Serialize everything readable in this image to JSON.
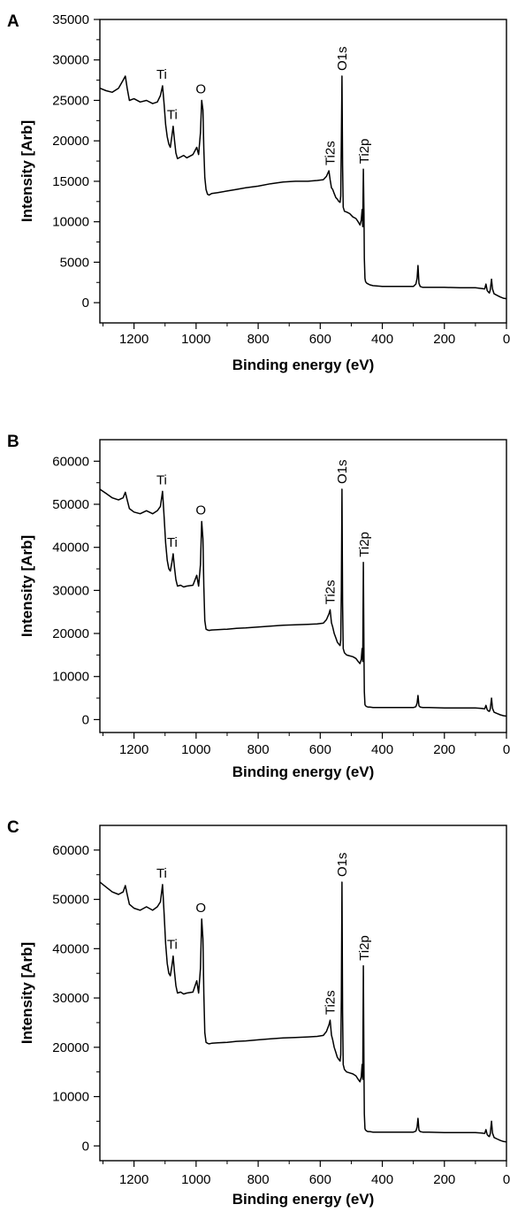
{
  "chart_data": [
    {
      "panel": "A",
      "type": "line",
      "title": "",
      "xlabel": "Binding energy (eV)",
      "ylabel": "Intensity [Arb]",
      "xlim": [
        1310,
        0
      ],
      "ylim": [
        -2500,
        35000
      ],
      "xticks": [
        1200,
        1000,
        800,
        600,
        400,
        200,
        0
      ],
      "yticks": [
        0,
        5000,
        10000,
        15000,
        20000,
        25000,
        30000,
        35000
      ],
      "series": [
        {
          "x": [
            1310,
            1290,
            1270,
            1250,
            1235,
            1228,
            1222,
            1215,
            1200,
            1180,
            1160,
            1140,
            1125,
            1115,
            1108,
            1103,
            1098,
            1093,
            1088,
            1083,
            1078,
            1074,
            1070,
            1065,
            1060,
            1050,
            1040,
            1030,
            1010,
            998,
            992,
            986,
            982,
            978,
            975,
            972,
            968,
            963,
            958,
            950,
            930,
            900,
            870,
            840,
            800,
            760,
            720,
            680,
            640,
            610,
            590,
            580,
            572,
            568,
            564,
            560,
            555,
            550,
            545,
            540,
            536,
            534,
            532,
            530,
            528,
            526,
            522,
            515,
            505,
            495,
            485,
            478,
            472,
            468,
            465,
            463,
            461,
            459,
            458,
            456,
            454,
            450,
            445,
            440,
            430,
            400,
            350,
            300,
            292,
            288,
            285,
            282,
            278,
            270,
            250,
            200,
            150,
            100,
            80,
            70,
            66,
            62,
            58,
            55,
            52,
            48,
            45,
            40,
            30,
            20,
            10,
            0
          ],
          "values": [
            26500,
            26200,
            26000,
            26500,
            27500,
            28000,
            26500,
            25000,
            25200,
            24800,
            25000,
            24600,
            24800,
            25600,
            26800,
            24500,
            22000,
            20500,
            19600,
            19200,
            20600,
            21800,
            20200,
            18500,
            17800,
            18000,
            18200,
            17900,
            18300,
            19200,
            18300,
            21000,
            25000,
            23800,
            19000,
            15500,
            14000,
            13400,
            13300,
            13500,
            13600,
            13800,
            14000,
            14200,
            14400,
            14700,
            14900,
            15000,
            15000,
            15100,
            15200,
            15600,
            16300,
            15200,
            14200,
            14000,
            13500,
            13000,
            12800,
            12500,
            12400,
            13200,
            20000,
            28000,
            17000,
            11800,
            11300,
            11200,
            11000,
            10600,
            10400,
            10000,
            9600,
            10200,
            11500,
            9400,
            16500,
            11000,
            5500,
            3000,
            2600,
            2400,
            2300,
            2200,
            2100,
            2000,
            2000,
            2000,
            2300,
            3000,
            4600,
            2400,
            2000,
            1900,
            1900,
            1900,
            1850,
            1850,
            1750,
            1700,
            2300,
            1500,
            1300,
            1200,
            1600,
            2900,
            1700,
            1100,
            900,
            700,
            550,
            500
          ]
        }
      ],
      "annotations": [
        {
          "text": "Ti",
          "x": 1108,
          "y": 26800,
          "rotated": false
        },
        {
          "text": "Ti",
          "x": 1074,
          "y": 21800,
          "rotated": false
        },
        {
          "text": "O",
          "x": 982,
          "y": 25000,
          "rotated": false
        },
        {
          "text": "Ti2s",
          "x": 568,
          "y": 16300,
          "rotated": true
        },
        {
          "text": "O1s",
          "x": 530,
          "y": 28000,
          "rotated": true
        },
        {
          "text": "Ti2p",
          "x": 459,
          "y": 16500,
          "rotated": true
        }
      ]
    },
    {
      "panel": "B",
      "type": "line",
      "title": "",
      "xlabel": "Binding energy (eV)",
      "ylabel": "Intensity [Arb]",
      "xlim": [
        1310,
        0
      ],
      "ylim": [
        -3000,
        65000
      ],
      "xticks": [
        1200,
        1000,
        800,
        600,
        400,
        200,
        0
      ],
      "yticks": [
        0,
        10000,
        20000,
        30000,
        40000,
        50000,
        60000
      ],
      "series": [
        {
          "x": [
            1310,
            1290,
            1270,
            1250,
            1235,
            1228,
            1222,
            1215,
            1200,
            1180,
            1160,
            1140,
            1125,
            1115,
            1108,
            1103,
            1098,
            1093,
            1088,
            1083,
            1078,
            1074,
            1070,
            1065,
            1060,
            1050,
            1040,
            1030,
            1010,
            998,
            992,
            986,
            982,
            978,
            975,
            972,
            968,
            963,
            958,
            950,
            930,
            900,
            870,
            840,
            800,
            760,
            720,
            680,
            640,
            610,
            590,
            580,
            572,
            568,
            564,
            560,
            555,
            550,
            545,
            540,
            536,
            534,
            532,
            530,
            528,
            526,
            522,
            515,
            505,
            495,
            485,
            478,
            472,
            468,
            465,
            463,
            461,
            459,
            458,
            456,
            454,
            450,
            445,
            440,
            430,
            400,
            350,
            300,
            292,
            288,
            285,
            282,
            278,
            270,
            250,
            200,
            150,
            100,
            80,
            70,
            66,
            62,
            58,
            55,
            52,
            48,
            45,
            40,
            30,
            20,
            10,
            0
          ],
          "values": [
            53500,
            52500,
            51500,
            51000,
            51500,
            52800,
            51000,
            49000,
            48200,
            47800,
            48500,
            47800,
            48500,
            49500,
            53000,
            47000,
            41000,
            37000,
            35000,
            34500,
            36500,
            38500,
            35500,
            32500,
            31000,
            31200,
            30800,
            31000,
            31200,
            33500,
            31000,
            36000,
            46000,
            42000,
            31000,
            23000,
            21000,
            20800,
            20700,
            20800,
            20900,
            21000,
            21200,
            21300,
            21500,
            21700,
            21900,
            22000,
            22100,
            22200,
            22400,
            23200,
            24500,
            25500,
            22500,
            21500,
            20000,
            19000,
            18000,
            17500,
            17200,
            18500,
            30000,
            53500,
            27000,
            16500,
            15500,
            15000,
            14800,
            14600,
            14200,
            13500,
            13000,
            14000,
            16500,
            13500,
            36500,
            15000,
            6500,
            3500,
            3200,
            3000,
            2900,
            2900,
            2800,
            2800,
            2800,
            2800,
            3000,
            3800,
            5600,
            3200,
            2900,
            2800,
            2800,
            2700,
            2700,
            2700,
            2600,
            2500,
            3300,
            2300,
            2000,
            1900,
            2500,
            5000,
            2600,
            1700,
            1400,
            1100,
            900,
            800
          ]
        }
      ],
      "annotations": [
        {
          "text": "Ti",
          "x": 1108,
          "y": 53000,
          "rotated": false
        },
        {
          "text": "Ti",
          "x": 1074,
          "y": 38500,
          "rotated": false
        },
        {
          "text": "O",
          "x": 982,
          "y": 46000,
          "rotated": false
        },
        {
          "text": "Ti2s",
          "x": 568,
          "y": 25500,
          "rotated": true
        },
        {
          "text": "O1s",
          "x": 530,
          "y": 53500,
          "rotated": true
        },
        {
          "text": "Ti2p",
          "x": 459,
          "y": 36500,
          "rotated": true
        }
      ]
    },
    {
      "panel": "C",
      "type": "line",
      "title": "",
      "xlabel": "Binding energy (eV)",
      "ylabel": "Intensity [Arb]",
      "xlim": [
        1310,
        0
      ],
      "ylim": [
        -3000,
        65000
      ],
      "xticks": [
        1200,
        1000,
        800,
        600,
        400,
        200,
        0
      ],
      "yticks": [
        0,
        10000,
        20000,
        30000,
        40000,
        50000,
        60000
      ],
      "series": [
        {
          "x": [
            1310,
            1290,
            1270,
            1250,
            1235,
            1228,
            1222,
            1215,
            1200,
            1180,
            1160,
            1140,
            1125,
            1115,
            1108,
            1103,
            1098,
            1093,
            1088,
            1083,
            1078,
            1074,
            1070,
            1065,
            1060,
            1050,
            1040,
            1030,
            1010,
            998,
            992,
            986,
            982,
            978,
            975,
            972,
            968,
            963,
            958,
            950,
            930,
            900,
            870,
            840,
            800,
            760,
            720,
            680,
            640,
            610,
            590,
            580,
            572,
            568,
            564,
            560,
            555,
            550,
            545,
            540,
            536,
            534,
            532,
            530,
            528,
            526,
            522,
            515,
            505,
            495,
            485,
            478,
            472,
            468,
            465,
            463,
            461,
            459,
            458,
            456,
            454,
            450,
            445,
            440,
            430,
            400,
            350,
            300,
            292,
            288,
            285,
            282,
            278,
            270,
            250,
            200,
            150,
            100,
            80,
            70,
            66,
            62,
            58,
            55,
            52,
            48,
            45,
            40,
            30,
            20,
            10,
            0
          ],
          "values": [
            53500,
            52500,
            51500,
            51000,
            51500,
            52800,
            51000,
            49000,
            48200,
            47800,
            48500,
            47800,
            48500,
            49500,
            53000,
            47000,
            41000,
            37000,
            35000,
            34500,
            36500,
            38500,
            35500,
            32500,
            31000,
            31200,
            30800,
            31000,
            31200,
            33500,
            31000,
            36000,
            46000,
            42000,
            31000,
            23000,
            21000,
            20800,
            20700,
            20800,
            20900,
            21000,
            21200,
            21300,
            21500,
            21700,
            21900,
            22000,
            22100,
            22200,
            22400,
            23200,
            24500,
            25500,
            22500,
            21500,
            20000,
            19000,
            18000,
            17500,
            17200,
            18500,
            30000,
            53500,
            27000,
            16500,
            15500,
            15000,
            14800,
            14600,
            14200,
            13500,
            13000,
            14000,
            16500,
            13500,
            36500,
            15000,
            6500,
            3500,
            3200,
            3000,
            2900,
            2900,
            2800,
            2800,
            2800,
            2800,
            3000,
            3800,
            5600,
            3200,
            2900,
            2800,
            2800,
            2700,
            2700,
            2700,
            2600,
            2500,
            3300,
            2300,
            2000,
            1900,
            2500,
            5000,
            2600,
            1700,
            1400,
            1100,
            900,
            800
          ]
        }
      ],
      "annotations": [
        {
          "text": "Ti",
          "x": 1108,
          "y": 53000,
          "rotated": false
        },
        {
          "text": "Ti",
          "x": 1074,
          "y": 38500,
          "rotated": false
        },
        {
          "text": "O",
          "x": 982,
          "y": 46000,
          "rotated": false
        },
        {
          "text": "Ti2s",
          "x": 568,
          "y": 25500,
          "rotated": true
        },
        {
          "text": "O1s",
          "x": 530,
          "y": 53500,
          "rotated": true
        },
        {
          "text": "Ti2p",
          "x": 459,
          "y": 36500,
          "rotated": true
        }
      ]
    }
  ]
}
